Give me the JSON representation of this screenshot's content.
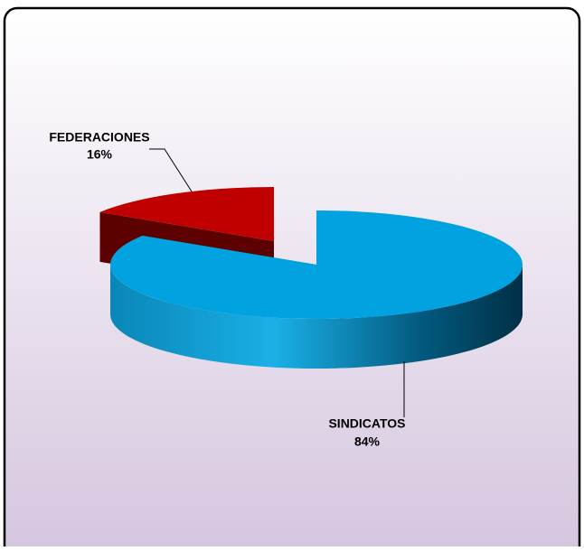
{
  "chart_data": {
    "type": "pie",
    "categories": [
      "FEDERACIONES",
      "SINDICATOS"
    ],
    "values": [
      16,
      84
    ],
    "value_labels": [
      "16%",
      "84%"
    ],
    "colors": [
      "#c00000",
      "#00a2e0"
    ]
  }
}
